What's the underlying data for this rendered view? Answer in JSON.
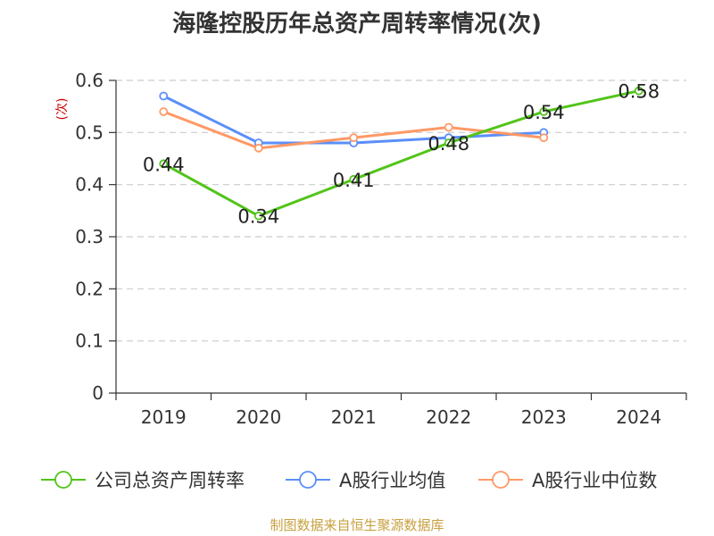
{
  "chart_data": {
    "type": "line",
    "title": "海隆控股历年总资产周转率情况(次)",
    "ylabel": "(次)",
    "categories": [
      "2019",
      "2020",
      "2021",
      "2022",
      "2023",
      "2024"
    ],
    "ylim": [
      0,
      0.6
    ],
    "yticks": [
      "0",
      "0.1",
      "0.2",
      "0.3",
      "0.4",
      "0.5",
      "0.6"
    ],
    "grid": true,
    "legend_position": "bottom",
    "series": [
      {
        "name": "公司总资产周转率",
        "color": "#52c41a",
        "values": [
          0.44,
          0.34,
          0.41,
          0.48,
          0.54,
          0.58
        ],
        "labels": [
          "0.44",
          "0.34",
          "0.41",
          "0.48",
          "0.54",
          "0.58"
        ]
      },
      {
        "name": "A股行业均值",
        "color": "#5b8ff9",
        "values": [
          0.57,
          0.48,
          0.48,
          0.49,
          0.5,
          null
        ]
      },
      {
        "name": "A股行业中位数",
        "color": "#ff9966",
        "values": [
          0.54,
          0.47,
          0.49,
          0.51,
          0.49,
          null
        ]
      }
    ],
    "source": "制图数据来自恒生聚源数据库",
    "colors": {
      "axis": "#333333",
      "grid": "#cccccc",
      "ylabel": "#cc0000",
      "source": "#c8a040"
    }
  }
}
